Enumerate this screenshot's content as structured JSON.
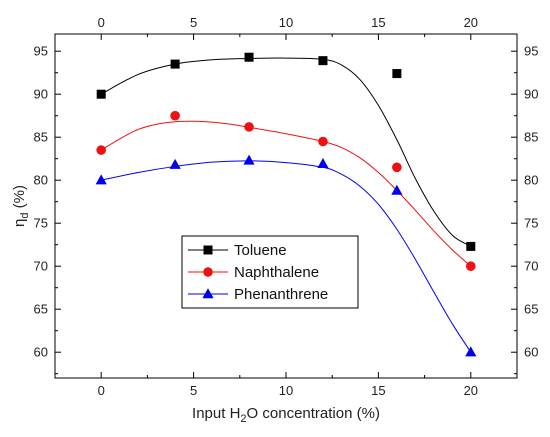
{
  "chart_data": {
    "type": "scatter",
    "xlabel_prefix": "Input H",
    "xlabel_sub": "2",
    "xlabel_suffix": "O concentration (%)",
    "ylabel_main": "η",
    "ylabel_sub": "d",
    "ylabel_suffix": " (%)",
    "xlim": [
      -2.5,
      22.5
    ],
    "ylim": [
      57,
      97
    ],
    "xticks": [
      0,
      5,
      10,
      15,
      20
    ],
    "yticks": [
      60,
      65,
      70,
      75,
      80,
      85,
      90,
      95
    ],
    "grid": false,
    "legend_position": "center-left",
    "x": [
      0,
      4,
      8,
      12,
      16,
      20
    ],
    "series": [
      {
        "name": "Toluene",
        "color": "#000000",
        "marker": "square",
        "values": [
          90.0,
          93.5,
          94.3,
          93.9,
          92.4,
          72.3
        ],
        "curve": [
          [
            0,
            90.0
          ],
          [
            2,
            92.3
          ],
          [
            4,
            93.5
          ],
          [
            6,
            94.0
          ],
          [
            8,
            94.15
          ],
          [
            10,
            94.2
          ],
          [
            12,
            94.05
          ],
          [
            13,
            93.4
          ],
          [
            14,
            91.7
          ],
          [
            15,
            88.7
          ],
          [
            16,
            84.7
          ],
          [
            17,
            80.2
          ],
          [
            18,
            76.4
          ],
          [
            19,
            73.6
          ],
          [
            20,
            72.3
          ]
        ]
      },
      {
        "name": "Naphthalene",
        "color": "#ee1111",
        "marker": "circle",
        "values": [
          83.5,
          87.5,
          86.2,
          84.5,
          81.5,
          70.0
        ],
        "curve": [
          [
            0,
            83.5
          ],
          [
            1,
            84.8
          ],
          [
            2,
            85.9
          ],
          [
            3,
            86.5
          ],
          [
            4,
            86.8
          ],
          [
            5,
            86.85
          ],
          [
            6,
            86.75
          ],
          [
            7,
            86.5
          ],
          [
            8,
            86.15
          ],
          [
            10,
            85.4
          ],
          [
            12,
            84.5
          ],
          [
            13,
            83.8
          ],
          [
            14,
            82.6
          ],
          [
            15,
            80.9
          ],
          [
            16,
            78.8
          ],
          [
            17,
            76.5
          ],
          [
            18,
            74.1
          ],
          [
            19,
            71.9
          ],
          [
            20,
            70.0
          ]
        ]
      },
      {
        "name": "Phenanthrene",
        "color": "#0000ee",
        "marker": "triangle",
        "values": [
          80.0,
          81.8,
          82.3,
          81.9,
          78.8,
          60.0
        ],
        "curve": [
          [
            0,
            80.0
          ],
          [
            2,
            80.9
          ],
          [
            4,
            81.6
          ],
          [
            6,
            82.1
          ],
          [
            8,
            82.25
          ],
          [
            10,
            82.05
          ],
          [
            12,
            81.5
          ],
          [
            13,
            80.7
          ],
          [
            14,
            79.3
          ],
          [
            15,
            77.2
          ],
          [
            16,
            74.3
          ],
          [
            17,
            70.8
          ],
          [
            18,
            67.0
          ],
          [
            19,
            63.3
          ],
          [
            20,
            60.0
          ]
        ]
      }
    ]
  }
}
